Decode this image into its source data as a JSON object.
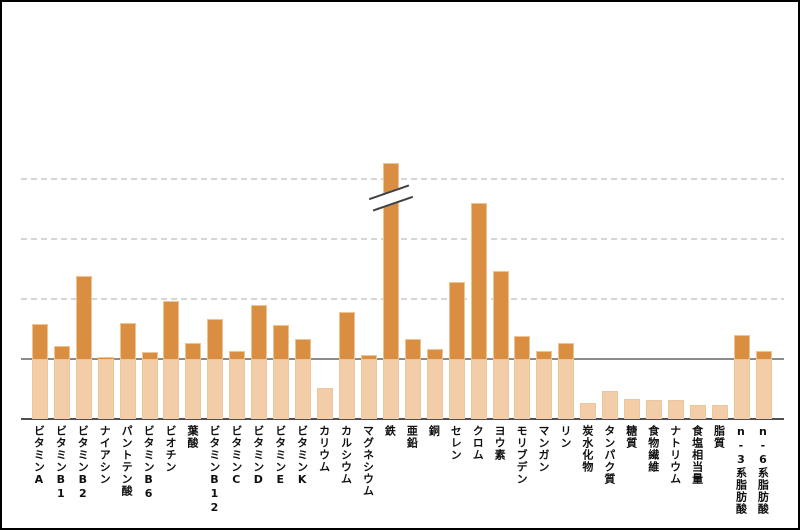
{
  "chart": {
    "background": "#ffffff",
    "frame_color": "#000000",
    "colors": {
      "bar_above_baseline": "#d98e42",
      "bar_below_baseline": "#f3cda7",
      "bar_edge": "#eec492",
      "gridline": "#d6d6d6",
      "baseline": "#8c8c8c",
      "axis": "#4f4f4f",
      "label_text": "#111111",
      "break_mark": "#404040"
    }
  },
  "chart_data": {
    "type": "bar",
    "title": "",
    "xlabel": "",
    "ylabel": "",
    "unit": "percent_of_reference_intake",
    "grid": "dashed-horizontal",
    "legend": null,
    "baseline_percent": 100,
    "gridline_percents": [
      200,
      300,
      400
    ],
    "ylim": [
      0,
      430
    ],
    "axis_break": {
      "category": "鉄",
      "display_percent": 427,
      "note": "bar exceeds axis; shown clipped with diagonal break marks"
    },
    "categories": [
      "ビタミンA",
      "ビタミンB1",
      "ビタミンB2",
      "ナイアシン",
      "パントテン酸",
      "ビタミンB6",
      "ビオチン",
      "葉酸",
      "ビタミンB12",
      "ビタミンC",
      "ビタミンD",
      "ビタミンE",
      "ビタミンK",
      "カリウム",
      "カルシウム",
      "マグネシウム",
      "鉄",
      "亜鉛",
      "銅",
      "セレン",
      "クロム",
      "ヨウ素",
      "モリブデン",
      "マンガン",
      "リン",
      "炭水化物",
      "タンパク質",
      "糖質",
      "食物繊維",
      "ナトリウム",
      "食塩相当量",
      "脂質",
      "n-3系脂肪酸",
      "n-6系脂肪酸"
    ],
    "values": [
      159,
      121,
      238,
      103,
      160,
      111,
      197,
      127,
      166,
      113,
      190,
      157,
      134,
      51,
      179,
      106,
      427,
      133,
      117,
      228,
      360,
      246,
      138,
      114,
      127,
      26,
      47,
      34,
      32,
      32,
      24,
      24,
      140,
      114
    ]
  }
}
